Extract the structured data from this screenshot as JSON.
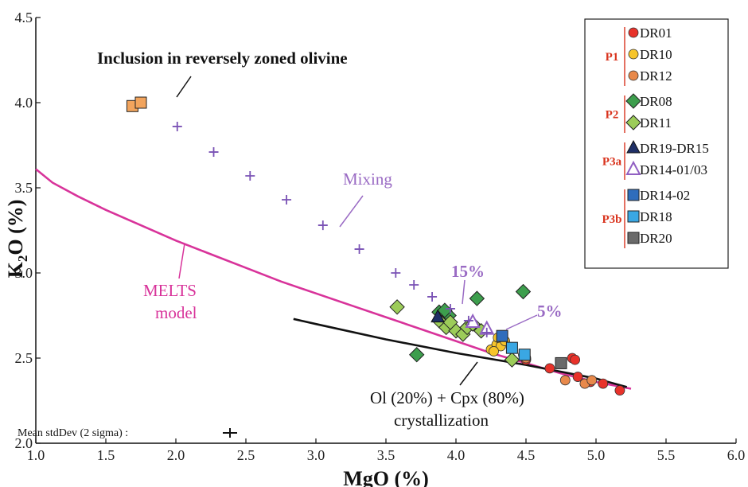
{
  "chart_data": {
    "type": "scatter",
    "xlabel": "MgO (%)",
    "ylabel": "K2O (%)",
    "xlim": [
      1.0,
      6.0
    ],
    "ylim": [
      2.0,
      4.5
    ],
    "xticks": [
      "1.0",
      "1.5",
      "2.0",
      "2.5",
      "3.0",
      "3.5",
      "4.0",
      "4.5",
      "5.0",
      "5.5",
      "6.0"
    ],
    "yticks": [
      "2.0",
      "2.5",
      "3.0",
      "3.5",
      "4.0",
      "4.5"
    ],
    "grid": false,
    "legend_position": "top-right",
    "legend_groups": [
      {
        "label": "P1",
        "color": "#d9341e",
        "items": [
          "DR01",
          "DR10",
          "DR12"
        ]
      },
      {
        "label": "P2",
        "color": "#d9341e",
        "items": [
          "DR08",
          "DR11"
        ]
      },
      {
        "label": "P3a",
        "color": "#d9341e",
        "items": [
          "DR19-DR15",
          "DR14-01/03"
        ]
      },
      {
        "label": "P3b",
        "color": "#d9341e",
        "items": [
          "DR14-02",
          "DR18",
          "DR20"
        ]
      }
    ],
    "series": [
      {
        "name": "DR01",
        "marker": "circle",
        "color": "#e8322a",
        "points": [
          [
            4.67,
            2.44
          ],
          [
            4.83,
            2.5
          ],
          [
            4.85,
            2.49
          ],
          [
            4.87,
            2.39
          ],
          [
            4.96,
            2.36
          ],
          [
            5.05,
            2.35
          ],
          [
            5.17,
            2.31
          ],
          [
            4.5,
            2.49
          ]
        ]
      },
      {
        "name": "DR10",
        "marker": "circle",
        "color": "#f6c52b",
        "points": [
          [
            4.25,
            2.55
          ],
          [
            4.29,
            2.58
          ],
          [
            4.32,
            2.57
          ],
          [
            4.3,
            2.62
          ],
          [
            4.35,
            2.6
          ],
          [
            4.4,
            2.56
          ],
          [
            4.48,
            2.52
          ],
          [
            4.27,
            2.54
          ]
        ]
      },
      {
        "name": "DR12",
        "marker": "circle",
        "color": "#e8894b",
        "points": [
          [
            4.78,
            2.37
          ],
          [
            4.92,
            2.35
          ],
          [
            4.97,
            2.37
          ],
          [
            4.5,
            2.5
          ]
        ]
      },
      {
        "name": "DR08",
        "marker": "diamond",
        "color": "#3d9e4d",
        "points": [
          [
            3.72,
            2.52
          ],
          [
            3.88,
            2.77
          ],
          [
            3.95,
            2.75
          ],
          [
            4.15,
            2.85
          ],
          [
            4.48,
            2.89
          ],
          [
            3.92,
            2.78
          ]
        ]
      },
      {
        "name": "DR11",
        "marker": "diamond",
        "color": "#9ccc59",
        "points": [
          [
            3.58,
            2.8
          ],
          [
            3.88,
            2.72
          ],
          [
            3.93,
            2.68
          ],
          [
            4.0,
            2.66
          ],
          [
            4.05,
            2.64
          ],
          [
            4.08,
            2.68
          ],
          [
            4.12,
            2.7
          ],
          [
            4.18,
            2.66
          ],
          [
            4.4,
            2.49
          ],
          [
            3.96,
            2.71
          ]
        ]
      },
      {
        "name": "DR19-DR15",
        "marker": "triangle",
        "color": "#1f2f66",
        "points": [
          [
            3.87,
            2.74
          ]
        ]
      },
      {
        "name": "DR14-01/03",
        "marker": "triangle-open",
        "color": "#9160c2",
        "points": [
          [
            4.12,
            2.71
          ],
          [
            4.22,
            2.67
          ]
        ]
      },
      {
        "name": "DR14-02",
        "marker": "square",
        "color": "#2f6dbc",
        "points": [
          [
            4.33,
            2.63
          ]
        ]
      },
      {
        "name": "DR18",
        "marker": "square",
        "color": "#3aa7e3",
        "points": [
          [
            4.4,
            2.56
          ],
          [
            4.49,
            2.52
          ]
        ]
      },
      {
        "name": "DR20",
        "marker": "square",
        "color": "#6a6a6a",
        "points": [
          [
            4.75,
            2.47
          ]
        ]
      },
      {
        "name": "Inclusion",
        "marker": "square",
        "color": "#f2a45d",
        "points": [
          [
            1.69,
            3.98
          ],
          [
            1.75,
            4.0
          ]
        ]
      },
      {
        "name": "Mixing",
        "marker": "plus",
        "color": "#7a52b5",
        "points": [
          [
            2.01,
            3.86
          ],
          [
            2.27,
            3.71
          ],
          [
            2.53,
            3.57
          ],
          [
            2.79,
            3.43
          ],
          [
            3.05,
            3.28
          ],
          [
            3.31,
            3.14
          ],
          [
            3.57,
            3.0
          ],
          [
            3.7,
            2.93
          ],
          [
            3.83,
            2.86
          ],
          [
            3.96,
            2.79
          ],
          [
            4.09,
            2.72
          ],
          [
            4.22,
            2.65
          ]
        ]
      },
      {
        "name": "MELTS model",
        "type": "line",
        "color": "#d8339a",
        "points": [
          [
            1.0,
            3.61
          ],
          [
            1.12,
            3.53
          ],
          [
            1.3,
            3.45
          ],
          [
            1.5,
            3.37
          ],
          [
            1.75,
            3.28
          ],
          [
            2.0,
            3.19
          ],
          [
            2.25,
            3.11
          ],
          [
            2.5,
            3.03
          ],
          [
            2.75,
            2.95
          ],
          [
            3.0,
            2.88
          ],
          [
            3.25,
            2.81
          ],
          [
            3.5,
            2.74
          ],
          [
            3.75,
            2.67
          ],
          [
            4.0,
            2.6
          ],
          [
            4.25,
            2.53
          ],
          [
            4.5,
            2.47
          ],
          [
            4.75,
            2.41
          ],
          [
            5.0,
            2.36
          ],
          [
            5.25,
            2.32
          ]
        ]
      },
      {
        "name": "Ol (20%) + Cpx (80%) crystallization",
        "type": "line",
        "color": "#111111",
        "points": [
          [
            2.84,
            2.73
          ],
          [
            3.0,
            2.7
          ],
          [
            3.5,
            2.61
          ],
          [
            4.0,
            2.53
          ],
          [
            4.5,
            2.46
          ],
          [
            5.0,
            2.38
          ],
          [
            5.22,
            2.33
          ]
        ]
      }
    ],
    "annotations": {
      "inclusion": "Inclusion in reversely zoned olivine",
      "mixing": "Mixing",
      "melts_line1": "MELTS",
      "melts_line2": "model",
      "pct15": "15%",
      "pct5": "5%",
      "crys_line1": "Ol (20%) + Cpx (80%)",
      "crys_line2": "crystallization",
      "stddev": "Mean stdDev (2 sigma) :"
    }
  }
}
